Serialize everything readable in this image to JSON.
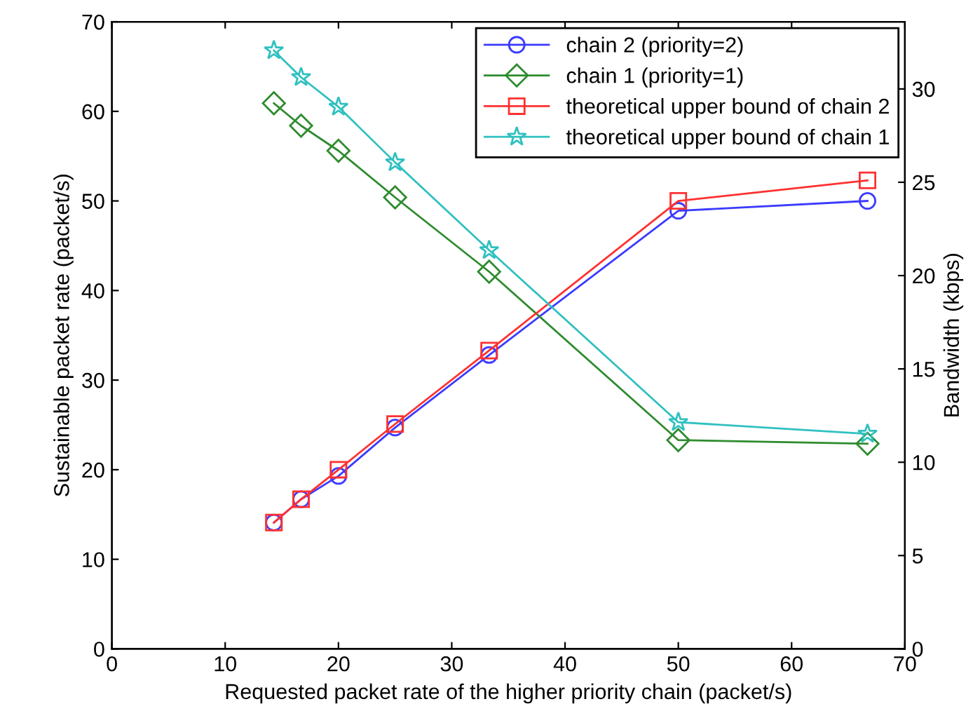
{
  "chart_data": {
    "type": "line",
    "xlabel": "Requested packet rate of the higher priority chain (packet/s)",
    "ylabel": "Sustainable packet rate (packet/s)",
    "y2label": "Bandwidth (kbps)",
    "x": [
      14.3,
      16.7,
      20,
      25,
      33.3,
      50,
      66.7
    ],
    "series": [
      {
        "name": "chain 2 (priority=2)",
        "color": "#3b3bff",
        "marker": "circle",
        "values": [
          14.1,
          16.7,
          19.3,
          24.7,
          32.8,
          48.9,
          50.0
        ]
      },
      {
        "name": "chain 1 (priority=1)",
        "color": "#2e8b2e",
        "marker": "diamond",
        "values": [
          60.9,
          58.4,
          55.6,
          50.4,
          42.1,
          23.3,
          22.9
        ]
      },
      {
        "name": "theoretical upper bound of chain 2",
        "color": "#ff3030",
        "marker": "square",
        "values": [
          14.1,
          16.7,
          20.0,
          25.1,
          33.3,
          50.0,
          52.3
        ]
      },
      {
        "name": "theoretical upper bound of chain 1",
        "color": "#30c0c0",
        "marker": "star",
        "values": [
          66.8,
          63.8,
          60.5,
          54.3,
          44.5,
          25.3,
          24.0
        ]
      }
    ],
    "xlim": [
      0,
      70
    ],
    "xticks": [
      0,
      10,
      20,
      30,
      40,
      50,
      60,
      70
    ],
    "ylim": [
      0,
      70
    ],
    "yticks": [
      0,
      10,
      20,
      30,
      40,
      50,
      60,
      70
    ],
    "y2lim": [
      0,
      33.6
    ],
    "y2ticks": [
      0,
      5,
      10,
      15,
      20,
      25,
      30
    ],
    "grid": false,
    "legend": "top right",
    "line_style": "solid"
  }
}
